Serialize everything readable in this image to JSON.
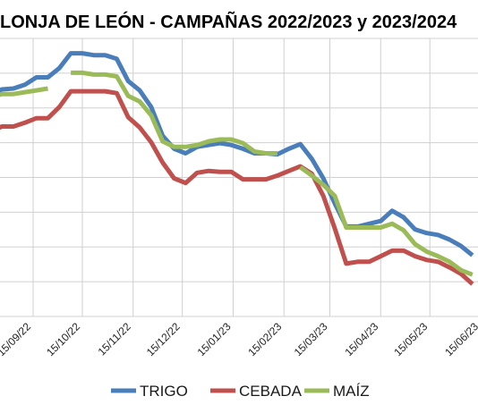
{
  "chart_data": {
    "type": "line",
    "title": "LONJA DE LEÓN - CAMPAÑAS 2022/2023 y 2023/2024",
    "xlabel": "",
    "ylabel": "",
    "x_tick_labels": [
      "15/09/22",
      "15/10/22",
      "15/11/22",
      "15/12/22",
      "15/01/23",
      "15/02/23",
      "15/03/23",
      "15/04/23",
      "15/05/23",
      "15/06/23"
    ],
    "grid": true,
    "legend_position": "bottom",
    "series": [
      {
        "name": "TRIGO",
        "color": "#4a7ebb",
        "points": [
          [
            "2022-08-20",
            0.64
          ],
          [
            "2022-08-27",
            0.645
          ],
          [
            "2022-09-03",
            0.646
          ],
          [
            "2022-09-10",
            0.65
          ],
          [
            "2022-09-17",
            0.658
          ],
          [
            "2022-09-24",
            0.658
          ],
          [
            "2022-10-01",
            0.668
          ],
          [
            "2022-10-08",
            0.684
          ],
          [
            "2022-10-15",
            0.684
          ],
          [
            "2022-10-22",
            0.682
          ],
          [
            "2022-10-29",
            0.682
          ],
          [
            "2022-11-05",
            0.678
          ],
          [
            "2022-11-12",
            0.654
          ],
          [
            "2022-11-19",
            0.644
          ],
          [
            "2022-11-26",
            0.626
          ],
          [
            "2022-12-03",
            0.595
          ],
          [
            "2022-12-10",
            0.581
          ],
          [
            "2022-12-17",
            0.576
          ],
          [
            "2022-12-24",
            0.583
          ],
          [
            "2022-12-31",
            0.585
          ],
          [
            "2023-01-07",
            0.587
          ],
          [
            "2023-01-14",
            0.585
          ],
          [
            "2023-01-21",
            0.581
          ],
          [
            "2023-01-28",
            0.576
          ],
          [
            "2023-02-04",
            0.576
          ],
          [
            "2023-02-11",
            0.575
          ],
          [
            "2023-02-18",
            0.581
          ],
          [
            "2023-02-25",
            0.586
          ],
          [
            "2023-03-04",
            0.57
          ],
          [
            "2023-03-11",
            0.549
          ],
          [
            "2023-03-18",
            0.522
          ],
          [
            "2023-03-25",
            0.497
          ],
          [
            "2023-04-01",
            0.497
          ],
          [
            "2023-04-08",
            0.5
          ],
          [
            "2023-04-15",
            0.503
          ],
          [
            "2023-04-22",
            0.514
          ],
          [
            "2023-04-29",
            0.507
          ],
          [
            "2023-05-06",
            0.494
          ],
          [
            "2023-05-13",
            0.49
          ],
          [
            "2023-05-20",
            0.488
          ],
          [
            "2023-05-27",
            0.483
          ],
          [
            "2023-06-03",
            0.476
          ],
          [
            "2023-06-10",
            0.466
          ]
        ]
      },
      {
        "name": "CEBADA",
        "color": "#c0504d",
        "points": [
          [
            "2022-08-20",
            0.6
          ],
          [
            "2022-08-27",
            0.605
          ],
          [
            "2022-09-03",
            0.605
          ],
          [
            "2022-09-10",
            0.609
          ],
          [
            "2022-09-17",
            0.614
          ],
          [
            "2022-09-24",
            0.614
          ],
          [
            "2022-10-01",
            0.626
          ],
          [
            "2022-10-08",
            0.643
          ],
          [
            "2022-10-15",
            0.643
          ],
          [
            "2022-10-22",
            0.643
          ],
          [
            "2022-10-29",
            0.643
          ],
          [
            "2022-11-05",
            0.641
          ],
          [
            "2022-11-12",
            0.615
          ],
          [
            "2022-11-19",
            0.604
          ],
          [
            "2022-11-26",
            0.588
          ],
          [
            "2022-12-03",
            0.566
          ],
          [
            "2022-12-10",
            0.549
          ],
          [
            "2022-12-17",
            0.544
          ],
          [
            "2022-12-24",
            0.555
          ],
          [
            "2022-12-31",
            0.557
          ],
          [
            "2023-01-07",
            0.556
          ],
          [
            "2023-01-14",
            0.556
          ],
          [
            "2023-01-21",
            0.548
          ],
          [
            "2023-01-28",
            0.548
          ],
          [
            "2023-02-04",
            0.548
          ],
          [
            "2023-02-11",
            0.552
          ],
          [
            "2023-02-18",
            0.557
          ],
          [
            "2023-02-25",
            0.562
          ],
          [
            "2023-03-04",
            0.554
          ],
          [
            "2023-03-11",
            0.53
          ],
          [
            "2023-03-18",
            0.495
          ],
          [
            "2023-03-25",
            0.457
          ],
          [
            "2023-04-01",
            0.459
          ],
          [
            "2023-04-08",
            0.459
          ],
          [
            "2023-04-15",
            0.465
          ],
          [
            "2023-04-22",
            0.471
          ],
          [
            "2023-04-29",
            0.471
          ],
          [
            "2023-05-06",
            0.465
          ],
          [
            "2023-05-13",
            0.461
          ],
          [
            "2023-05-20",
            0.459
          ],
          [
            "2023-05-27",
            0.453
          ],
          [
            "2023-06-03",
            0.446
          ],
          [
            "2023-06-10",
            0.435
          ]
        ]
      },
      {
        "name": "MAÍZ",
        "color": "#9bbb59",
        "segments": [
          [
            [
              "2022-08-20",
              0.636
            ],
            [
              "2022-08-27",
              0.64
            ],
            [
              "2022-09-03",
              0.64
            ],
            [
              "2022-09-10",
              0.642
            ],
            [
              "2022-09-17",
              0.644
            ],
            [
              "2022-09-24",
              0.646
            ]
          ],
          [
            [
              "2022-10-08",
              0.663
            ],
            [
              "2022-10-15",
              0.663
            ],
            [
              "2022-10-22",
              0.661
            ],
            [
              "2022-10-29",
              0.661
            ],
            [
              "2022-11-05",
              0.659
            ],
            [
              "2022-11-12",
              0.638
            ],
            [
              "2022-11-19",
              0.632
            ],
            [
              "2022-11-26",
              0.617
            ],
            [
              "2022-12-03",
              0.589
            ],
            [
              "2022-12-10",
              0.583
            ],
            [
              "2022-12-17",
              0.583
            ],
            [
              "2022-12-24",
              0.585
            ],
            [
              "2022-12-31",
              0.589
            ],
            [
              "2023-01-07",
              0.591
            ],
            [
              "2023-01-14",
              0.591
            ],
            [
              "2023-01-21",
              0.587
            ],
            [
              "2023-01-28",
              0.578
            ],
            [
              "2023-02-04",
              0.576
            ],
            [
              "2023-02-11",
              0.576
            ]
          ],
          [
            [
              "2023-02-25",
              0.561
            ],
            [
              "2023-03-04",
              0.552
            ],
            [
              "2023-03-11",
              0.542
            ],
            [
              "2023-03-18",
              0.53
            ],
            [
              "2023-03-25",
              0.496
            ],
            [
              "2023-04-01",
              0.496
            ],
            [
              "2023-04-08",
              0.496
            ],
            [
              "2023-04-15",
              0.496
            ],
            [
              "2023-04-22",
              0.5
            ],
            [
              "2023-04-29",
              0.493
            ],
            [
              "2023-05-06",
              0.478
            ],
            [
              "2023-05-13",
              0.47
            ],
            [
              "2023-05-20",
              0.465
            ],
            [
              "2023-05-27",
              0.459
            ],
            [
              "2023-06-03",
              0.45
            ],
            [
              "2023-06-10",
              0.445
            ]
          ]
        ]
      }
    ]
  }
}
